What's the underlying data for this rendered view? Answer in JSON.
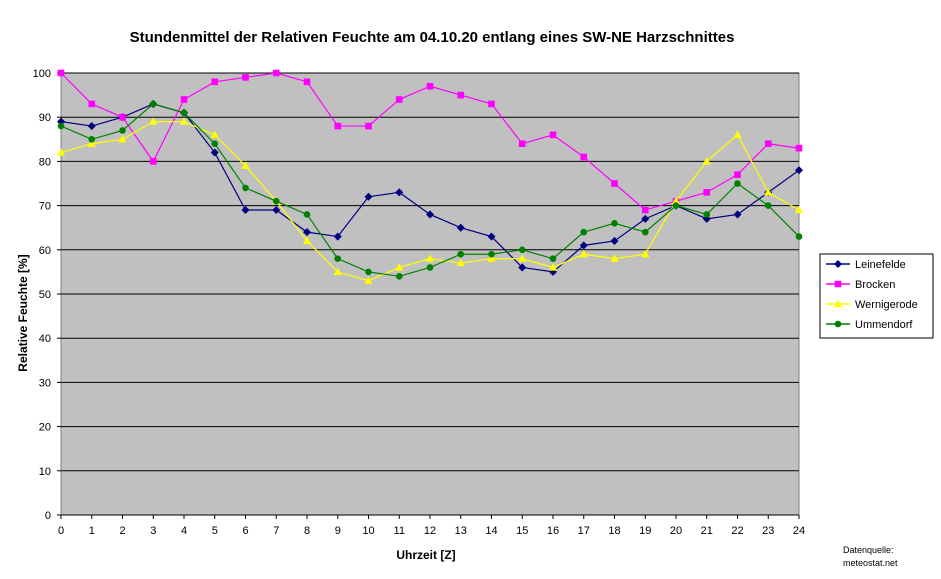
{
  "chart_data": {
    "type": "line",
    "title": "Stundenmittel der Relativen Feuchte am 04.10.20 entlang eines SW-NE Harzschnittes",
    "xlabel": "Uhrzeit [Z]",
    "ylabel": "Relative Feuchte  [%]",
    "ylim": [
      0,
      100
    ],
    "yticks": [
      0,
      10,
      20,
      30,
      40,
      50,
      60,
      70,
      80,
      90,
      100
    ],
    "x": [
      0,
      1,
      2,
      3,
      4,
      5,
      6,
      7,
      8,
      9,
      10,
      11,
      12,
      13,
      14,
      15,
      16,
      17,
      18,
      19,
      20,
      21,
      22,
      23,
      24
    ],
    "grid": true,
    "plot_background": "#c0c0c0",
    "legend_position": "right",
    "series": [
      {
        "name": "Leinefelde",
        "color": "#000080",
        "marker": "diamond",
        "values": [
          89,
          88,
          90,
          93,
          91,
          82,
          69,
          69,
          64,
          63,
          72,
          73,
          68,
          65,
          63,
          56,
          55,
          61,
          62,
          67,
          70,
          67,
          68,
          73,
          78
        ]
      },
      {
        "name": "Brocken",
        "color": "#ff00ff",
        "marker": "square",
        "values": [
          100,
          93,
          90,
          80,
          94,
          98,
          99,
          100,
          98,
          88,
          88,
          94,
          97,
          95,
          93,
          84,
          86,
          81,
          75,
          69,
          71,
          73,
          77,
          84,
          83
        ]
      },
      {
        "name": "Wernigerode",
        "color": "#ffff00",
        "marker": "triangle",
        "values": [
          82,
          84,
          85,
          89,
          89,
          86,
          79,
          71,
          62,
          55,
          53,
          56,
          58,
          57,
          58,
          58,
          56,
          59,
          58,
          59,
          71,
          80,
          86,
          73,
          69
        ]
      },
      {
        "name": "Ummendorf",
        "color": "#008000",
        "marker": "circle",
        "values": [
          88,
          85,
          87,
          93,
          91,
          84,
          74,
          71,
          68,
          58,
          55,
          54,
          56,
          59,
          59,
          60,
          58,
          64,
          66,
          64,
          70,
          68,
          75,
          70,
          63
        ]
      }
    ],
    "source_line1": "Datenquelle:",
    "source_line2": "meteostat.net"
  }
}
